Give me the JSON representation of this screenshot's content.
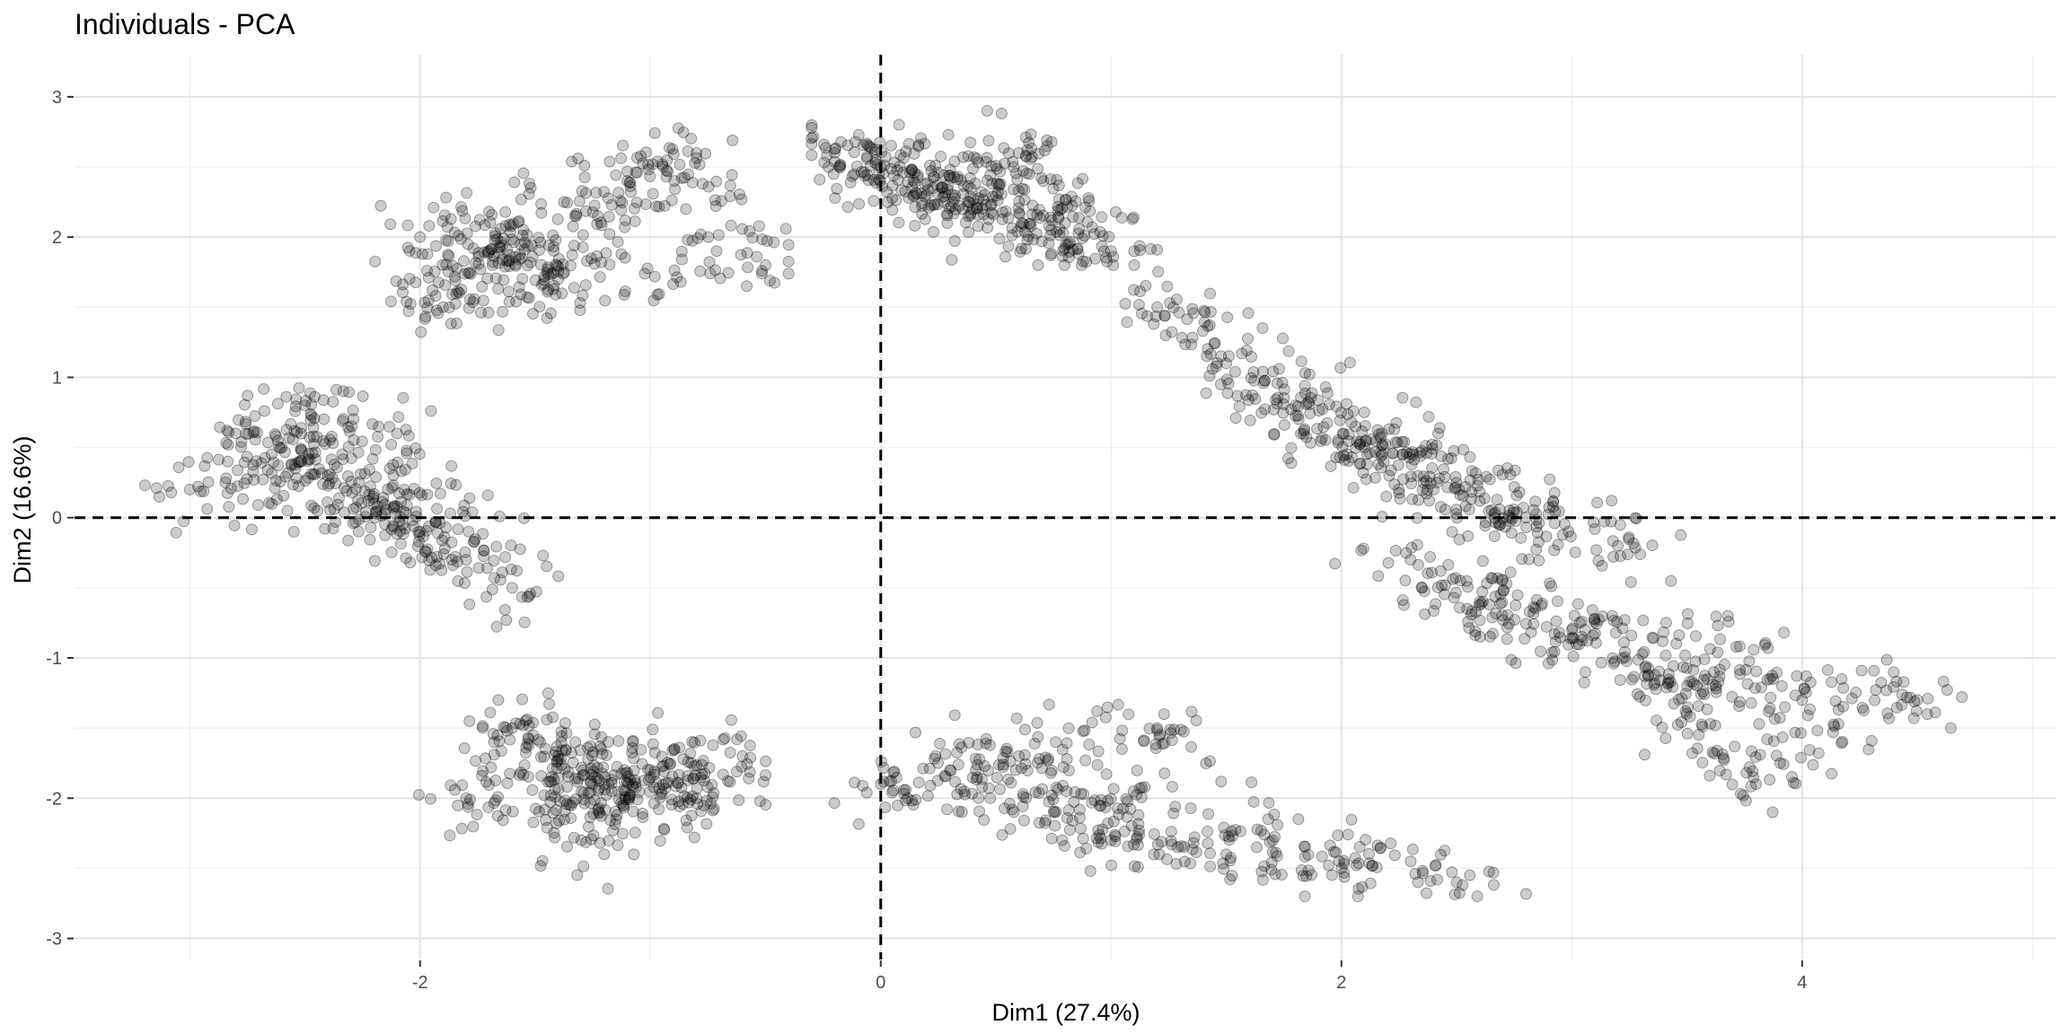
{
  "chart_data": {
    "type": "scatter",
    "title": "Individuals - PCA",
    "xlabel": "Dim1 (27.4%)",
    "ylabel": "Dim2 (16.6%)",
    "xlim": [
      -3.5,
      5.1
    ],
    "ylim": [
      -3.15,
      3.3
    ],
    "x_ticks": [
      -2,
      0,
      2,
      4
    ],
    "y_ticks": [
      -3,
      -2,
      -1,
      0,
      1,
      2,
      3
    ],
    "x_tick_labels": [
      "-2",
      "0",
      "2",
      "4"
    ],
    "y_tick_labels": [
      "-3",
      "-2",
      "-1",
      "0",
      "1",
      "2",
      "3"
    ],
    "grid": true,
    "reference_lines": {
      "x": 0,
      "y": 0,
      "style": "dashed"
    },
    "point_color": "#000000",
    "point_alpha": 0.2,
    "series": [
      {
        "clusters_approx": [
          {
            "region": "left-upper dense",
            "x_range": [
              -3.2,
              -1.4
            ],
            "y_range": [
              -0.9,
              1.0
            ],
            "points": [
              [
                -2.6,
                0.5
              ],
              [
                -2.4,
                0.3
              ],
              [
                -2.2,
                0.1
              ],
              [
                -2.0,
                -0.1
              ],
              [
                -1.8,
                -0.3
              ],
              [
                -2.8,
                0.6
              ],
              [
                -3.0,
                0.2
              ],
              [
                -1.6,
                -0.5
              ],
              [
                -2.5,
                0.8
              ],
              [
                -2.1,
                0.6
              ]
            ]
          },
          {
            "region": "left-lower dense",
            "x_range": [
              -2.2,
              -0.5
            ],
            "y_range": [
              -2.7,
              -1.0
            ],
            "points": [
              [
                -1.4,
                -1.7
              ],
              [
                -1.2,
                -1.9
              ],
              [
                -1.0,
                -1.8
              ],
              [
                -0.8,
                -2.0
              ],
              [
                -1.6,
                -1.5
              ],
              [
                -1.8,
                -2.0
              ],
              [
                -1.3,
                -2.3
              ],
              [
                -0.6,
                -1.7
              ]
            ]
          },
          {
            "region": "upper-left arc",
            "x_range": [
              -2.2,
              -0.4
            ],
            "y_range": [
              1.2,
              2.8
            ],
            "points": [
              [
                -2.0,
                2.0
              ],
              [
                -1.7,
                1.9
              ],
              [
                -1.4,
                1.7
              ],
              [
                -1.1,
                2.4
              ],
              [
                -0.8,
                2.6
              ],
              [
                -0.5,
                1.8
              ],
              [
                -1.9,
                1.5
              ]
            ]
          },
          {
            "region": "top center",
            "x_range": [
              -0.3,
              1.2
            ],
            "y_range": [
              1.8,
              2.9
            ],
            "points": [
              [
                0.0,
                2.5
              ],
              [
                0.2,
                2.3
              ],
              [
                0.4,
                2.2
              ],
              [
                0.6,
                2.6
              ],
              [
                0.8,
                2.1
              ],
              [
                -0.2,
                2.6
              ],
              [
                1.0,
                1.9
              ]
            ]
          },
          {
            "region": "right diagonal band",
            "x_range": [
              1.0,
              3.5
            ],
            "y_range": [
              -0.6,
              1.9
            ],
            "points": [
              [
                1.2,
                1.5
              ],
              [
                1.5,
                1.1
              ],
              [
                1.8,
                0.8
              ],
              [
                2.1,
                0.5
              ],
              [
                2.4,
                0.2
              ],
              [
                2.8,
                0.0
              ],
              [
                3.2,
                -0.2
              ]
            ]
          },
          {
            "region": "right lower dense",
            "x_range": [
              1.8,
              4.7
            ],
            "y_range": [
              -2.1,
              0.2
            ],
            "points": [
              [
                2.3,
                -0.3
              ],
              [
                2.6,
                -0.6
              ],
              [
                3.0,
                -0.8
              ],
              [
                3.5,
                -1.2
              ],
              [
                4.0,
                -1.3
              ],
              [
                4.5,
                -1.3
              ],
              [
                3.8,
                -1.9
              ]
            ]
          },
          {
            "region": "bottom band",
            "x_range": [
              -0.4,
              3.0
            ],
            "y_range": [
              -2.7,
              -0.9
            ],
            "points": [
              [
                0.0,
                -1.9
              ],
              [
                0.3,
                -1.8
              ],
              [
                0.6,
                -1.7
              ],
              [
                1.0,
                -2.3
              ],
              [
                1.5,
                -2.4
              ],
              [
                2.0,
                -2.5
              ],
              [
                2.5,
                -2.6
              ],
              [
                1.2,
                -1.5
              ]
            ]
          }
        ]
      }
    ]
  }
}
